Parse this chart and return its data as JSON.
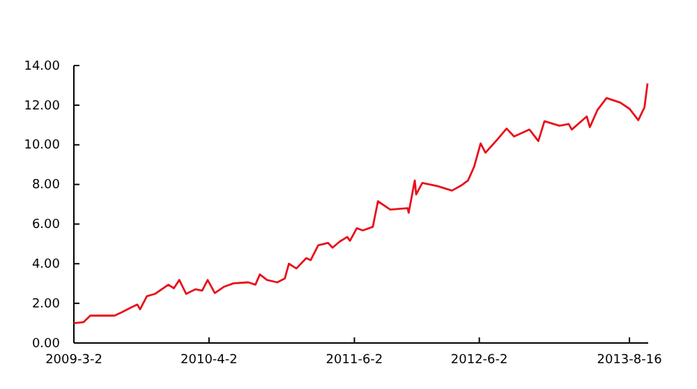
{
  "chart_data": {
    "type": "line",
    "xlim": [
      "2009-03-02",
      "2013-10-10"
    ],
    "ylim": [
      0,
      14
    ],
    "xticks": [
      {
        "value": "2009-03-02",
        "label": "2009-3-2"
      },
      {
        "value": "2010-04-02",
        "label": "2010-4-2"
      },
      {
        "value": "2011-06-02",
        "label": "2011-6-2"
      },
      {
        "value": "2012-06-02",
        "label": "2012-6-2"
      },
      {
        "value": "2013-08-16",
        "label": "2013-8-16"
      }
    ],
    "yticks": [
      {
        "value": 0,
        "label": "0.00"
      },
      {
        "value": 2,
        "label": "2.00"
      },
      {
        "value": 4,
        "label": "4.00"
      },
      {
        "value": 6,
        "label": "6.00"
      },
      {
        "value": 8,
        "label": "8.00"
      },
      {
        "value": 10,
        "label": "10.00"
      },
      {
        "value": 12,
        "label": "12.00"
      },
      {
        "value": 14,
        "label": "14.00"
      }
    ],
    "grid": false,
    "x": [
      "2009-03-02",
      "2009-03-30",
      "2009-04-19",
      "2009-06-29",
      "2009-07-19",
      "2009-08-15",
      "2009-09-04",
      "2009-09-12",
      "2009-10-02",
      "2009-10-26",
      "2009-12-04",
      "2009-12-20",
      "2010-01-05",
      "2010-01-25",
      "2010-02-21",
      "2010-03-13",
      "2010-03-29",
      "2010-04-19",
      "2010-05-15",
      "2010-06-13",
      "2010-07-26",
      "2010-08-16",
      "2010-08-29",
      "2010-09-19",
      "2010-10-19",
      "2010-11-10",
      "2010-11-22",
      "2010-12-14",
      "2011-01-12",
      "2011-01-25",
      "2011-02-16",
      "2011-03-17",
      "2011-03-30",
      "2011-04-20",
      "2011-05-12",
      "2011-05-20",
      "2011-06-09",
      "2011-06-27",
      "2011-07-26",
      "2011-08-10",
      "2011-09-15",
      "2011-11-05",
      "2011-11-08",
      "2011-11-26",
      "2011-11-30",
      "2011-12-18",
      "2012-01-31",
      "2012-03-14",
      "2012-04-12",
      "2012-04-30",
      "2012-05-18",
      "2012-06-06",
      "2012-06-20",
      "2012-07-21",
      "2012-08-21",
      "2012-09-12",
      "2012-10-27",
      "2012-11-22",
      "2012-12-10",
      "2013-01-23",
      "2013-02-19",
      "2013-02-28",
      "2013-04-13",
      "2013-04-22",
      "2013-05-14",
      "2013-06-10",
      "2013-07-20",
      "2013-08-16",
      "2013-09-11",
      "2013-09-29",
      "2013-10-08"
    ],
    "series": [
      {
        "color": "#e8101a",
        "values": [
          1.0,
          1.05,
          1.38,
          1.38,
          1.54,
          1.78,
          1.94,
          1.7,
          2.36,
          2.48,
          2.94,
          2.76,
          3.18,
          2.48,
          2.71,
          2.64,
          3.18,
          2.52,
          2.83,
          3.01,
          3.06,
          2.94,
          3.46,
          3.18,
          3.06,
          3.25,
          4.0,
          3.76,
          4.28,
          4.18,
          4.93,
          5.05,
          4.81,
          5.12,
          5.35,
          5.16,
          5.79,
          5.68,
          5.86,
          7.15,
          6.73,
          6.8,
          6.57,
          8.2,
          7.5,
          8.08,
          7.92,
          7.69,
          7.97,
          8.2,
          8.9,
          10.07,
          9.6,
          10.19,
          10.82,
          10.42,
          10.77,
          10.19,
          11.19,
          10.96,
          11.05,
          10.77,
          11.43,
          10.89,
          11.75,
          12.36,
          12.13,
          11.82,
          11.24,
          11.89,
          13.1
        ]
      }
    ]
  }
}
